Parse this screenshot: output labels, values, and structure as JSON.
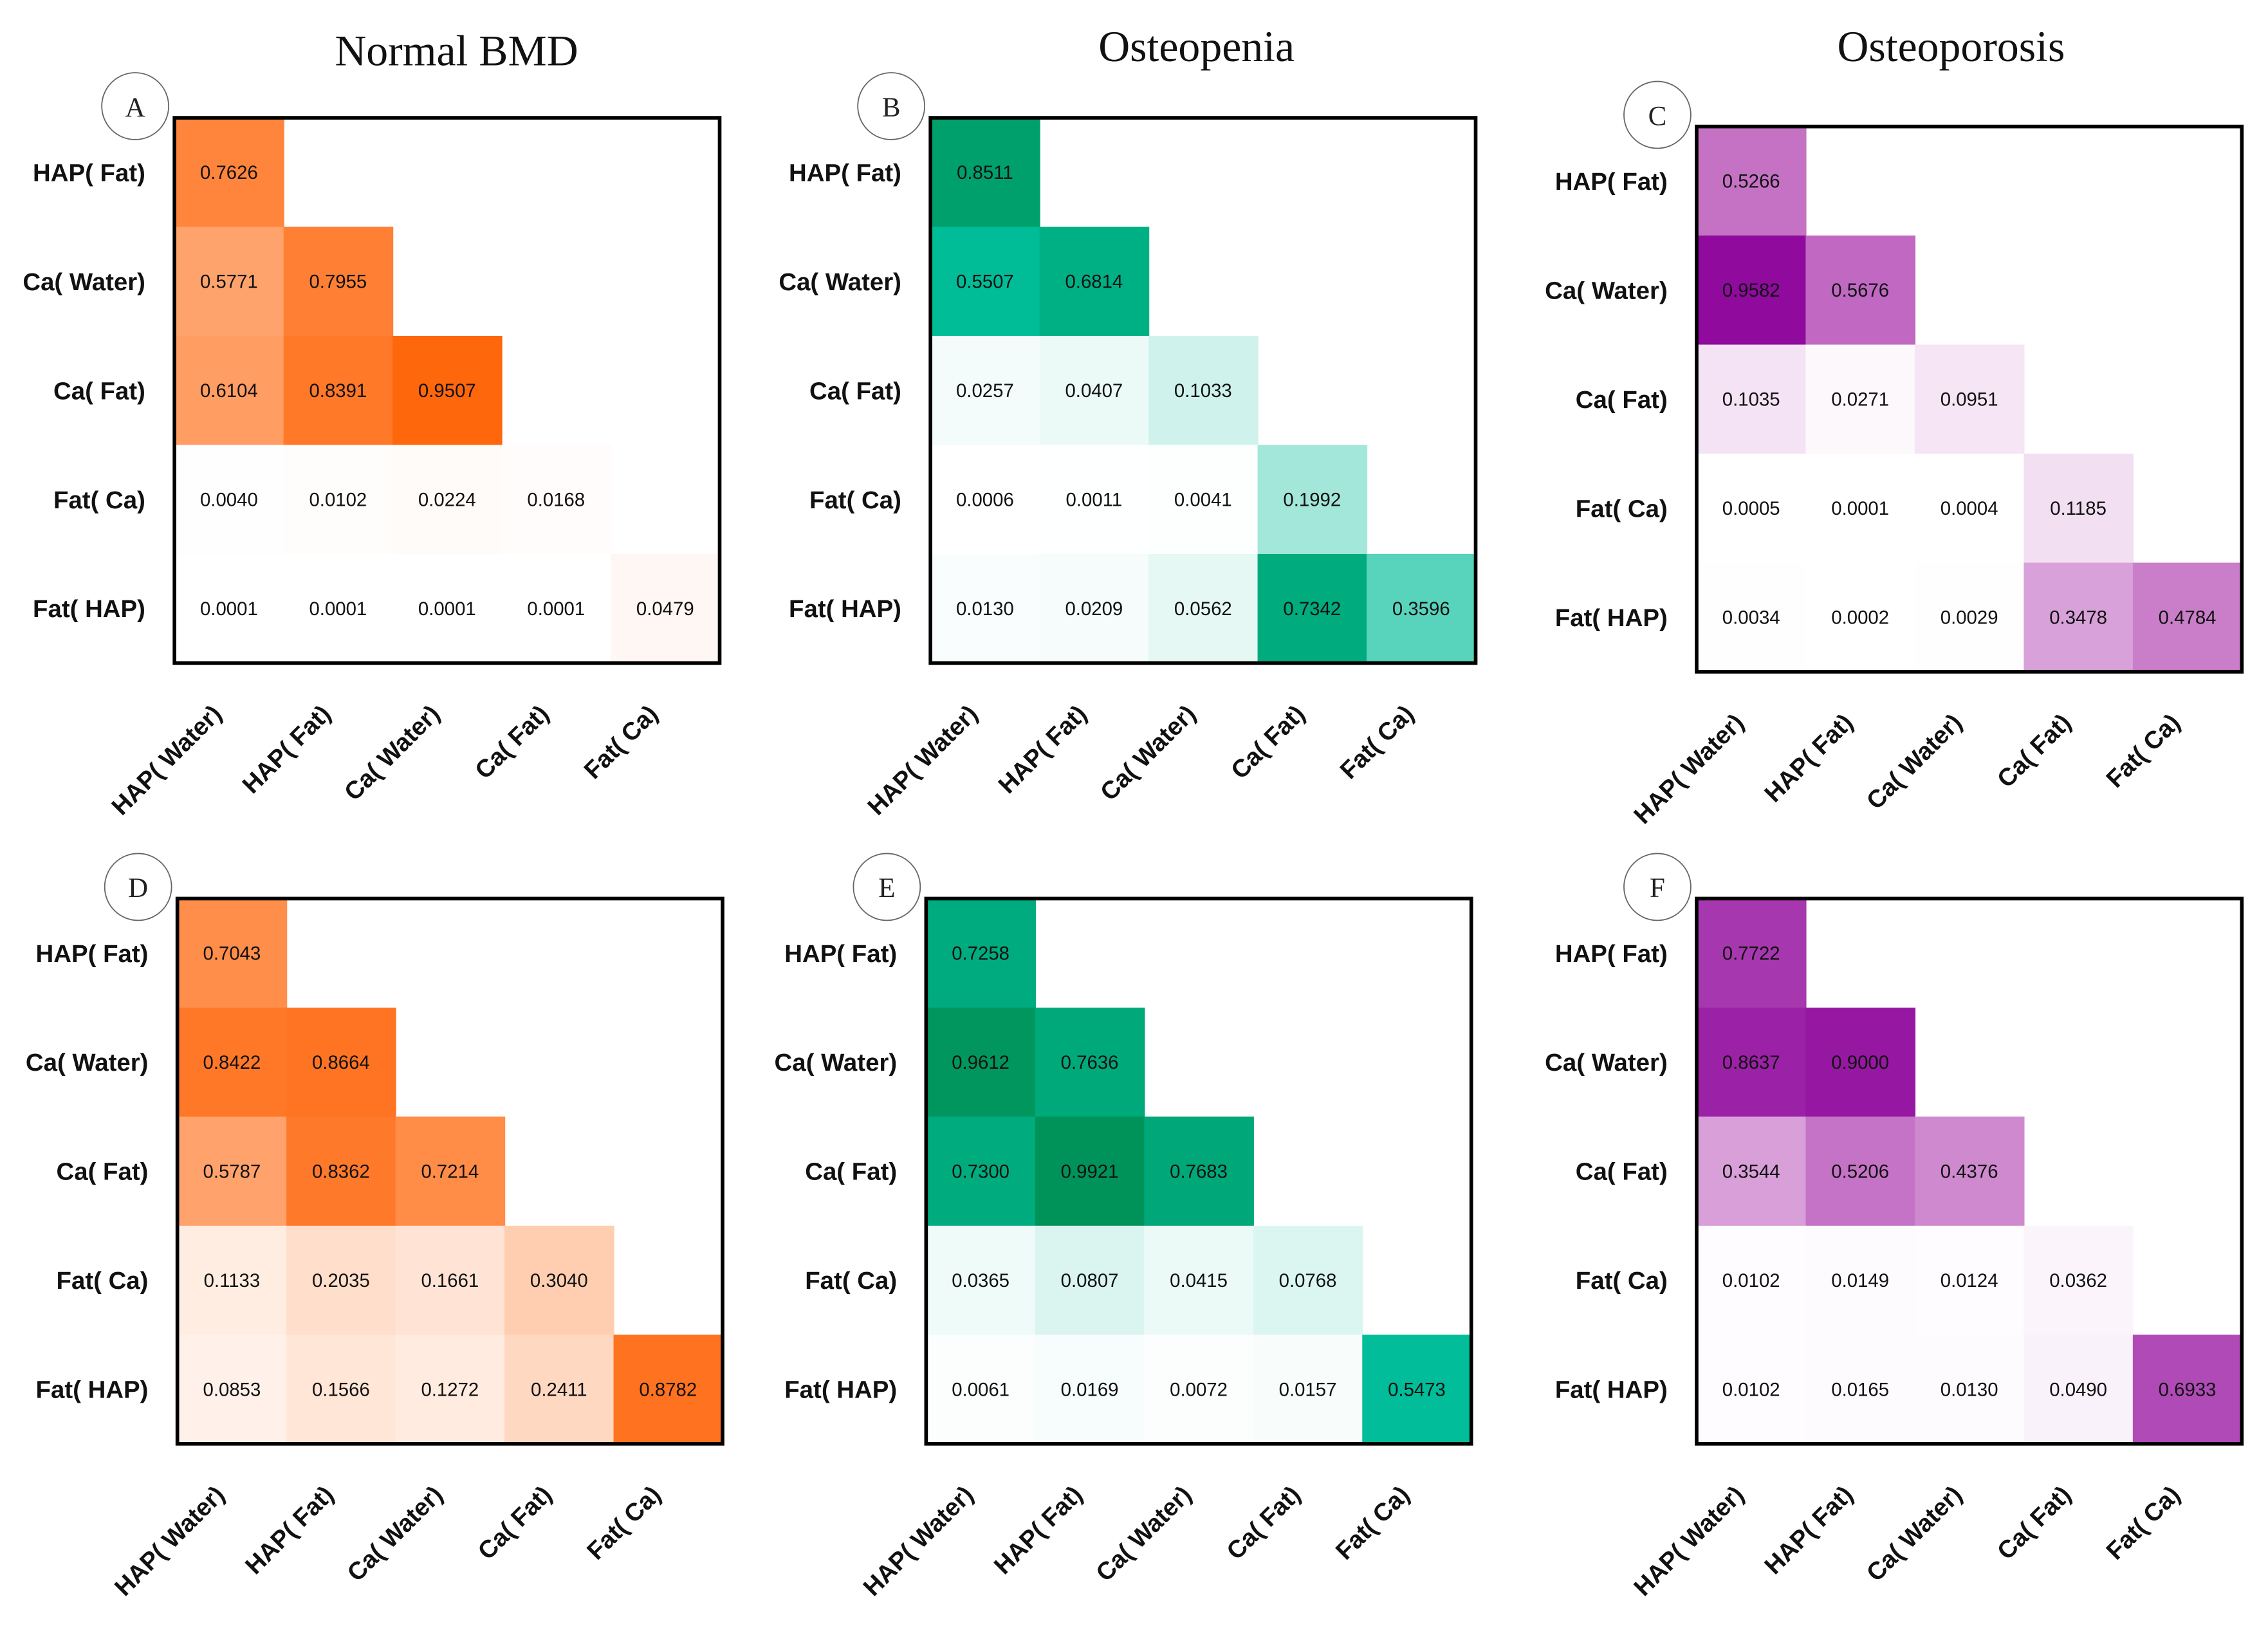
{
  "chart_data": {
    "type": "heatmap",
    "column_titles": [
      "Normal BMD",
      "Osteopenia",
      "Osteoporosis"
    ],
    "row_labels": [
      "HAP( Fat)",
      "Ca( Water)",
      "Ca( Fat)",
      "Fat( Ca)",
      "Fat( HAP)"
    ],
    "col_labels": [
      "HAP( Water)",
      "HAP( Fat)",
      "Ca( Water)",
      "Ca( Fat)",
      "Fat( Ca)"
    ],
    "panels": [
      {
        "label": "A",
        "group": "Normal BMD",
        "color": "#ff5f00",
        "values": [
          [
            "0.7626"
          ],
          [
            "0.5771",
            "0.7955"
          ],
          [
            "0.6104",
            "0.8391",
            "0.9507"
          ],
          [
            "0.0040",
            "0.0102",
            "0.0224",
            "0.0168"
          ],
          [
            "0.0001",
            "0.0001",
            "0.0001",
            "0.0001",
            "0.0479"
          ]
        ]
      },
      {
        "label": "B",
        "group": "Osteopenia",
        "color": "#00bd98",
        "values": [
          [
            "0.8511"
          ],
          [
            "0.5507",
            "0.6814"
          ],
          [
            "0.0257",
            "0.0407",
            "0.1033"
          ],
          [
            "0.0006",
            "0.0011",
            "0.0041",
            "0.1992"
          ],
          [
            "0.0130",
            "0.0209",
            "0.0562",
            "0.7342",
            "0.3596"
          ]
        ]
      },
      {
        "label": "C",
        "group": "Osteoporosis",
        "color": "#8a0099",
        "values": [
          [
            "0.5266"
          ],
          [
            "0.9582",
            "0.5676"
          ],
          [
            "0.1035",
            "0.0271",
            "0.0951"
          ],
          [
            "0.0005",
            "0.0001",
            "0.0004",
            "0.1185"
          ],
          [
            "0.0034",
            "0.0002",
            "0.0029",
            "0.3478",
            "0.4784"
          ]
        ]
      },
      {
        "label": "D",
        "group": "Normal BMD",
        "color": "#ff5f00",
        "values": [
          [
            "0.7043"
          ],
          [
            "0.8422",
            "0.8664"
          ],
          [
            "0.5787",
            "0.8362",
            "0.7214"
          ],
          [
            "0.1133",
            "0.2035",
            "0.1661",
            "0.3040"
          ],
          [
            "0.0853",
            "0.1566",
            "0.1272",
            "0.2411",
            "0.8782"
          ]
        ]
      },
      {
        "label": "E",
        "group": "Osteopenia",
        "color": "#00bd98",
        "values": [
          [
            "0.7258"
          ],
          [
            "0.9612",
            "0.7636"
          ],
          [
            "0.7300",
            "0.9921",
            "0.7683"
          ],
          [
            "0.0365",
            "0.0807",
            "0.0415",
            "0.0768"
          ],
          [
            "0.0061",
            "0.0169",
            "0.0072",
            "0.0157",
            "0.5473"
          ]
        ]
      },
      {
        "label": "F",
        "group": "Osteoporosis",
        "color": "#8a0099",
        "values": [
          [
            "0.7722"
          ],
          [
            "0.8637",
            "0.9000"
          ],
          [
            "0.3544",
            "0.5206",
            "0.4376"
          ],
          [
            "0.0102",
            "0.0149",
            "0.0124",
            "0.0362"
          ],
          [
            "0.0102",
            "0.0165",
            "0.0130",
            "0.0490",
            "0.6933"
          ]
        ]
      }
    ],
    "value_range": [
      0,
      1
    ]
  }
}
